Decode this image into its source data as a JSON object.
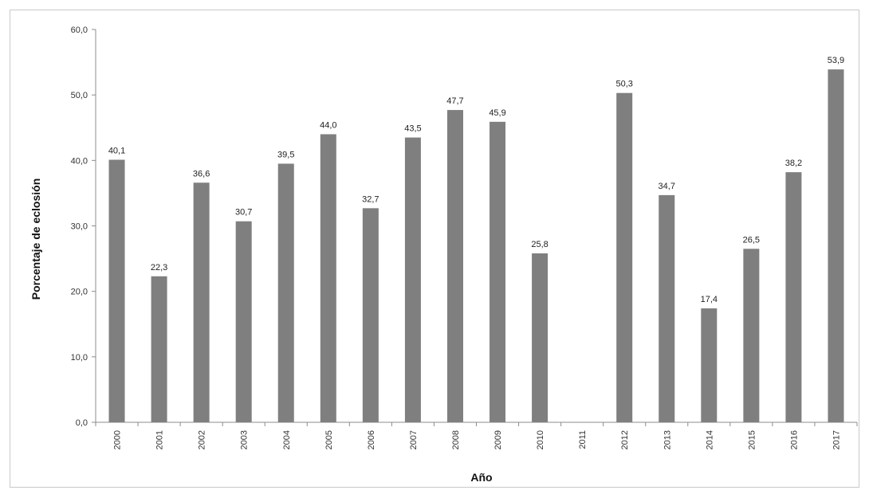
{
  "chart_data": {
    "type": "bar",
    "title": "",
    "xlabel": "Año",
    "ylabel": "Porcentaje de eclosión",
    "ylim": [
      0,
      60
    ],
    "yticks": [
      "0,0",
      "10,0",
      "20,0",
      "30,0",
      "40,0",
      "50,0",
      "60,0"
    ],
    "grid": false,
    "legend": "none",
    "bar_color": "#7f7f7f",
    "categories": [
      "2000",
      "2001",
      "2002",
      "2003",
      "2004",
      "2005",
      "2006",
      "2007",
      "2008",
      "2009",
      "2010",
      "2011",
      "2012",
      "2013",
      "2014",
      "2015",
      "2016",
      "2017"
    ],
    "values": [
      40.1,
      22.3,
      36.6,
      30.7,
      39.5,
      44.0,
      32.7,
      43.5,
      47.7,
      45.9,
      25.8,
      null,
      50.3,
      34.7,
      17.4,
      26.5,
      38.2,
      53.9
    ],
    "data_labels": [
      "40,1",
      "22,3",
      "36,6",
      "30,7",
      "39,5",
      "44,0",
      "32,7",
      "43,5",
      "47,7",
      "45,9",
      "25,8",
      "",
      "50,3",
      "34,7",
      "17,4",
      "26,5",
      "38,2",
      "53,9"
    ]
  }
}
